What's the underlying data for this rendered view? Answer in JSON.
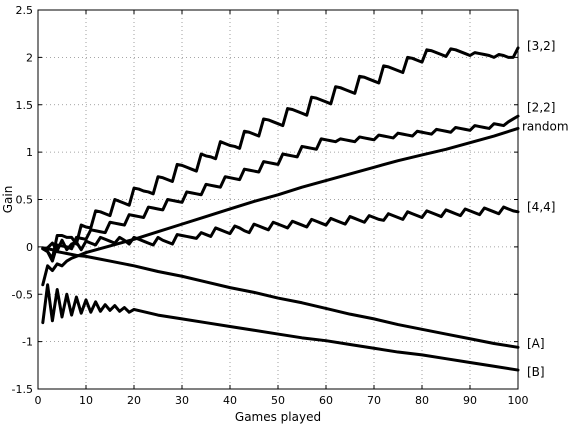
{
  "chart_data": {
    "type": "line",
    "title": "",
    "xlabel": "Games played",
    "ylabel": "Gain",
    "xlim": [
      0,
      100
    ],
    "ylim": [
      -1.5,
      2.5
    ],
    "grid": true,
    "x_ticks": [
      0,
      10,
      20,
      30,
      40,
      50,
      60,
      70,
      80,
      90,
      100
    ],
    "y_ticks": [
      -1.5,
      -1,
      -0.5,
      0,
      0.5,
      1,
      1.5,
      2,
      2.5
    ],
    "x_tick_labels": [
      "0",
      "10",
      "20",
      "30",
      "40",
      "50",
      "60",
      "70",
      "80",
      "90",
      "100"
    ],
    "y_tick_labels": [
      "-1.5",
      "-1",
      "-0.5",
      "0",
      "0.5",
      "1",
      "1.5",
      "2",
      "2.5"
    ],
    "series": [
      {
        "name": "[3,2]",
        "x": [
          1,
          2,
          3,
          4,
          5,
          6,
          7,
          8,
          9,
          10,
          11,
          12,
          13,
          14,
          15,
          16,
          17,
          18,
          19,
          20,
          21,
          22,
          23,
          24,
          25,
          26,
          27,
          28,
          29,
          30,
          31,
          32,
          33,
          34,
          35,
          36,
          37,
          38,
          39,
          40,
          41,
          42,
          43,
          44,
          45,
          46,
          47,
          48,
          49,
          50,
          51,
          52,
          53,
          54,
          55,
          56,
          57,
          58,
          59,
          60,
          61,
          62,
          63,
          64,
          65,
          66,
          67,
          68,
          69,
          70,
          71,
          72,
          73,
          74,
          75,
          76,
          77,
          78,
          79,
          80,
          81,
          82,
          83,
          84,
          85,
          86,
          87,
          88,
          89,
          90,
          91,
          92,
          93,
          94,
          95,
          96,
          97,
          98,
          99,
          100
        ],
        "y": [
          -0.02,
          -0.05,
          -0.12,
          0.12,
          0.12,
          0.1,
          0.1,
          0.03,
          0.23,
          0.21,
          0.2,
          0.38,
          0.37,
          0.35,
          0.33,
          0.5,
          0.48,
          0.46,
          0.44,
          0.62,
          0.61,
          0.59,
          0.58,
          0.56,
          0.74,
          0.73,
          0.71,
          0.69,
          0.87,
          0.86,
          0.84,
          0.82,
          0.8,
          0.98,
          0.96,
          0.95,
          0.93,
          1.11,
          1.09,
          1.07,
          1.06,
          1.04,
          1.22,
          1.21,
          1.19,
          1.17,
          1.35,
          1.34,
          1.32,
          1.3,
          1.28,
          1.46,
          1.45,
          1.43,
          1.41,
          1.39,
          1.58,
          1.57,
          1.55,
          1.53,
          1.51,
          1.69,
          1.68,
          1.66,
          1.64,
          1.62,
          1.8,
          1.79,
          1.77,
          1.75,
          1.73,
          1.91,
          1.9,
          1.88,
          1.86,
          1.84,
          2.0,
          1.99,
          1.97,
          1.95,
          2.08,
          2.07,
          2.05,
          2.03,
          2.01,
          2.09,
          2.08,
          2.06,
          2.04,
          2.02,
          2.05,
          2.04,
          2.03,
          2.02,
          2.0,
          2.03,
          2.02,
          2.0,
          2.0,
          2.1
        ]
      },
      {
        "name": "[2,2]",
        "x": [
          1,
          2,
          3,
          4,
          5,
          6,
          7,
          8,
          9,
          10,
          11,
          12,
          13,
          14,
          15,
          16,
          17,
          18,
          19,
          20,
          21,
          22,
          23,
          24,
          25,
          26,
          27,
          28,
          29,
          30,
          31,
          32,
          33,
          34,
          35,
          36,
          37,
          38,
          39,
          40,
          41,
          42,
          43,
          44,
          45,
          46,
          47,
          48,
          49,
          50,
          51,
          52,
          53,
          54,
          55,
          56,
          57,
          58,
          59,
          60,
          61,
          62,
          63,
          64,
          65,
          66,
          67,
          68,
          69,
          70,
          71,
          72,
          73,
          74,
          75,
          76,
          77,
          78,
          79,
          80,
          81,
          82,
          83,
          84,
          85,
          86,
          87,
          88,
          89,
          90,
          91,
          92,
          93,
          94,
          95,
          96,
          97,
          98,
          99,
          100
        ],
        "y": [
          -0.02,
          -0.05,
          -0.15,
          0.02,
          0.01,
          0.0,
          -0.02,
          0.1,
          0.09,
          0.08,
          0.18,
          0.17,
          0.16,
          0.15,
          0.26,
          0.25,
          0.24,
          0.23,
          0.34,
          0.33,
          0.32,
          0.31,
          0.42,
          0.41,
          0.4,
          0.39,
          0.5,
          0.49,
          0.48,
          0.47,
          0.58,
          0.57,
          0.56,
          0.55,
          0.66,
          0.65,
          0.64,
          0.63,
          0.74,
          0.73,
          0.72,
          0.71,
          0.82,
          0.81,
          0.8,
          0.79,
          0.9,
          0.89,
          0.88,
          0.87,
          0.98,
          0.97,
          0.96,
          0.95,
          1.06,
          1.05,
          1.04,
          1.03,
          1.14,
          1.13,
          1.12,
          1.11,
          1.14,
          1.13,
          1.12,
          1.11,
          1.16,
          1.15,
          1.14,
          1.13,
          1.18,
          1.17,
          1.16,
          1.15,
          1.2,
          1.19,
          1.18,
          1.17,
          1.22,
          1.21,
          1.2,
          1.19,
          1.24,
          1.23,
          1.22,
          1.21,
          1.26,
          1.25,
          1.24,
          1.23,
          1.28,
          1.27,
          1.26,
          1.25,
          1.3,
          1.29,
          1.28,
          1.32,
          1.35,
          1.38
        ]
      },
      {
        "name": "random",
        "x": [
          1,
          2,
          3,
          4,
          5,
          6,
          7,
          8,
          9,
          10,
          15,
          20,
          25,
          30,
          35,
          40,
          45,
          50,
          55,
          60,
          65,
          70,
          75,
          80,
          85,
          90,
          95,
          100
        ],
        "y": [
          -0.4,
          -0.2,
          -0.25,
          -0.18,
          -0.2,
          -0.15,
          -0.12,
          -0.1,
          -0.08,
          -0.06,
          0.01,
          0.08,
          0.16,
          0.24,
          0.32,
          0.4,
          0.48,
          0.55,
          0.63,
          0.7,
          0.77,
          0.84,
          0.91,
          0.97,
          1.03,
          1.1,
          1.17,
          1.25
        ]
      },
      {
        "name": "[4,4]",
        "x": [
          1,
          2,
          3,
          4,
          5,
          6,
          7,
          8,
          9,
          10,
          11,
          12,
          13,
          14,
          15,
          16,
          17,
          18,
          19,
          20,
          21,
          22,
          23,
          24,
          25,
          26,
          27,
          28,
          29,
          30,
          31,
          32,
          33,
          34,
          35,
          36,
          37,
          38,
          39,
          40,
          41,
          42,
          43,
          44,
          45,
          46,
          47,
          48,
          49,
          50,
          51,
          52,
          53,
          54,
          55,
          56,
          57,
          58,
          59,
          60,
          61,
          62,
          63,
          64,
          65,
          66,
          67,
          68,
          69,
          70,
          71,
          72,
          73,
          74,
          75,
          76,
          77,
          78,
          79,
          80,
          81,
          82,
          83,
          84,
          85,
          86,
          87,
          88,
          89,
          90,
          91,
          92,
          93,
          94,
          95,
          96,
          97,
          98,
          99,
          100
        ],
        "y": [
          -0.02,
          -0.01,
          0.04,
          -0.04,
          0.07,
          -0.03,
          0.03,
          0.05,
          -0.03,
          0.06,
          0.04,
          0.02,
          0.1,
          0.08,
          0.06,
          0.04,
          0.1,
          0.07,
          0.03,
          0.1,
          0.08,
          0.06,
          0.04,
          0.02,
          0.1,
          0.07,
          0.05,
          0.03,
          0.13,
          0.12,
          0.11,
          0.1,
          0.09,
          0.15,
          0.13,
          0.11,
          0.2,
          0.18,
          0.16,
          0.14,
          0.22,
          0.2,
          0.17,
          0.15,
          0.24,
          0.22,
          0.2,
          0.18,
          0.26,
          0.24,
          0.22,
          0.2,
          0.27,
          0.25,
          0.23,
          0.21,
          0.29,
          0.27,
          0.25,
          0.23,
          0.3,
          0.28,
          0.26,
          0.24,
          0.32,
          0.3,
          0.28,
          0.26,
          0.33,
          0.31,
          0.29,
          0.28,
          0.35,
          0.33,
          0.31,
          0.29,
          0.37,
          0.35,
          0.33,
          0.31,
          0.38,
          0.36,
          0.34,
          0.32,
          0.39,
          0.37,
          0.35,
          0.33,
          0.4,
          0.38,
          0.36,
          0.34,
          0.41,
          0.39,
          0.37,
          0.35,
          0.42,
          0.4,
          0.38,
          0.37
        ]
      },
      {
        "name": "[A]",
        "x": [
          1,
          2,
          3,
          4,
          5,
          6,
          8,
          10,
          12,
          15,
          20,
          25,
          30,
          35,
          40,
          45,
          50,
          55,
          60,
          65,
          70,
          75,
          80,
          85,
          90,
          95,
          100
        ],
        "y": [
          -0.01,
          -0.02,
          -0.03,
          -0.05,
          -0.06,
          -0.07,
          -0.09,
          -0.1,
          -0.12,
          -0.15,
          -0.2,
          -0.26,
          -0.31,
          -0.37,
          -0.43,
          -0.48,
          -0.54,
          -0.59,
          -0.65,
          -0.71,
          -0.76,
          -0.82,
          -0.87,
          -0.92,
          -0.97,
          -1.02,
          -1.06
        ]
      },
      {
        "name": "[B]",
        "x": [
          1,
          2,
          3,
          4,
          5,
          6,
          7,
          8,
          9,
          10,
          11,
          12,
          13,
          14,
          15,
          16,
          17,
          18,
          19,
          20,
          25,
          30,
          35,
          40,
          45,
          50,
          55,
          60,
          65,
          70,
          75,
          80,
          85,
          90,
          95,
          100
        ],
        "y": [
          -0.8,
          -0.4,
          -0.78,
          -0.45,
          -0.74,
          -0.5,
          -0.72,
          -0.53,
          -0.7,
          -0.56,
          -0.69,
          -0.58,
          -0.68,
          -0.61,
          -0.67,
          -0.62,
          -0.68,
          -0.64,
          -0.69,
          -0.66,
          -0.72,
          -0.76,
          -0.8,
          -0.84,
          -0.88,
          -0.92,
          -0.96,
          -0.99,
          -1.03,
          -1.07,
          -1.11,
          -1.14,
          -1.18,
          -1.22,
          -1.26,
          -1.3
        ]
      }
    ],
    "labels": [
      {
        "text": "[3,2]",
        "y": 2.12
      },
      {
        "text": "[2,2]",
        "y": 1.47
      },
      {
        "text": "random",
        "y": 1.27
      },
      {
        "text": "[4,4]",
        "y": 0.42
      },
      {
        "text": "[A]",
        "y": -1.02
      },
      {
        "text": "[B]",
        "y": -1.32
      }
    ]
  }
}
